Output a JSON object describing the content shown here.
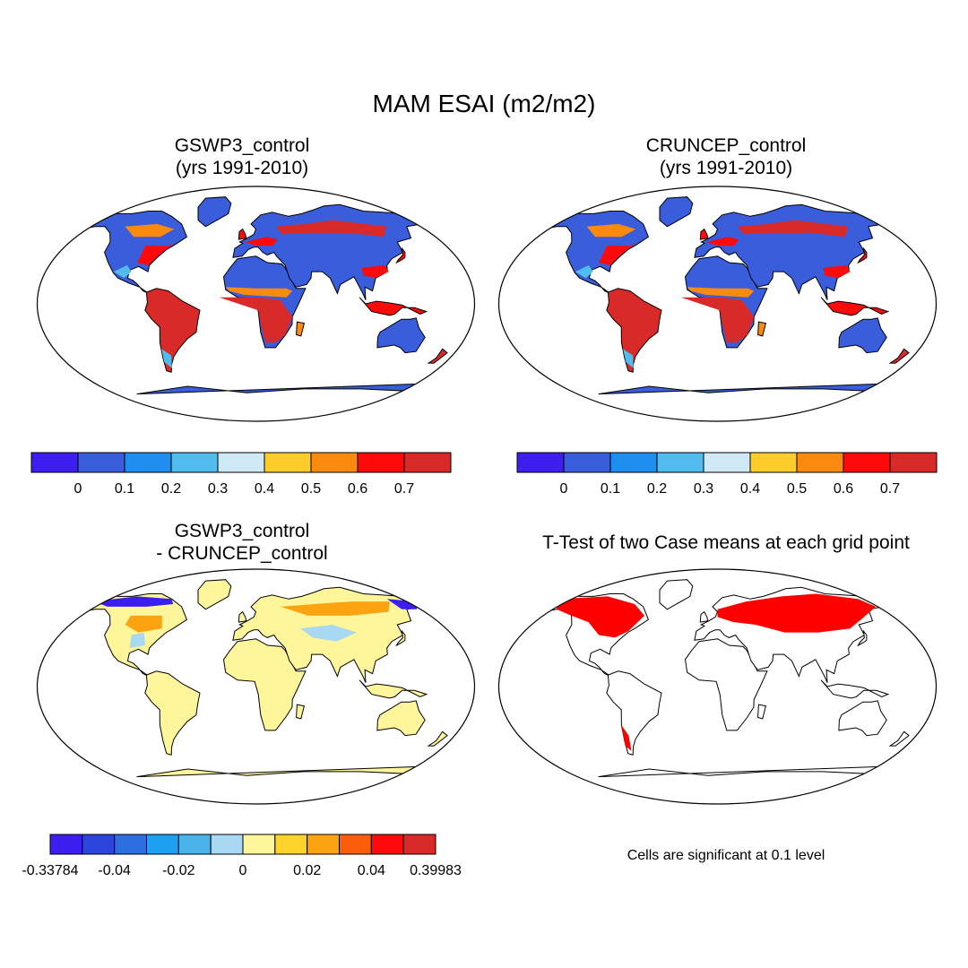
{
  "figure": {
    "title": "MAM ESAI (m2/m2)"
  },
  "chart_data": [
    {
      "type": "heatmap",
      "panel": "top-left",
      "title_line1": "GSWP3_control",
      "title_line2": "(yrs 1991-2010)",
      "variable": "ESAI",
      "units": "m2/m2",
      "colorbar": {
        "colors": [
          "#3d1ef0",
          "#3a5ddc",
          "#1e8ef0",
          "#50bdee",
          "#cfe9f7",
          "#fccc2a",
          "#fb8a0f",
          "#ff0a0a",
          "#d92a2a"
        ],
        "tick_labels": [
          "0",
          "0.1",
          "0.2",
          "0.3",
          "0.4",
          "0.5",
          "0.6",
          "0.7"
        ]
      }
    },
    {
      "type": "heatmap",
      "panel": "top-right",
      "title_line1": "CRUNCEP_control",
      "title_line2": "(yrs 1991-2010)",
      "variable": "ESAI",
      "units": "m2/m2",
      "colorbar": {
        "colors": [
          "#3d1ef0",
          "#3a5ddc",
          "#1e8ef0",
          "#50bdee",
          "#cfe9f7",
          "#fccc2a",
          "#fb8a0f",
          "#ff0a0a",
          "#d92a2a"
        ],
        "tick_labels": [
          "0",
          "0.1",
          "0.2",
          "0.3",
          "0.4",
          "0.5",
          "0.6",
          "0.7"
        ]
      }
    },
    {
      "type": "heatmap",
      "panel": "bottom-left",
      "title_line1": "GSWP3_control",
      "title_line2": "- CRUNCEP_control",
      "variable": "ESAI difference",
      "units": "m2/m2",
      "colorbar": {
        "colors": [
          "#3d1ef0",
          "#2c45dc",
          "#2e6fe0",
          "#1ea0f0",
          "#4cb2ea",
          "#a8d8f2",
          "#fff59a",
          "#fdd22a",
          "#fca311",
          "#fb5e0a",
          "#ff0a0a",
          "#d92a2a"
        ],
        "tick_labels": [
          "-0.33784",
          "-0.04",
          "-0.02",
          "0",
          "0.02",
          "0.04",
          "0.39983"
        ]
      }
    },
    {
      "type": "heatmap",
      "panel": "bottom-right",
      "title_line1": "T-Test of two Case means at each grid point",
      "note": "Cells are significant at 0.1 level",
      "significance_level": 0.1,
      "significant_color": "#ff0000"
    }
  ]
}
